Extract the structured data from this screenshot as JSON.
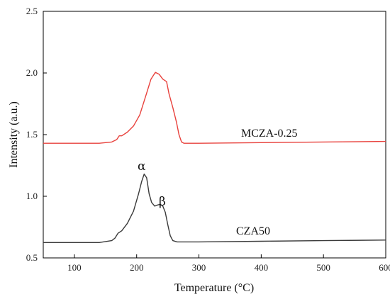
{
  "chart_data": {
    "type": "line",
    "xlabel": "Temperature (°C)",
    "ylabel": "Intensity (a.u.)",
    "xlim": [
      50,
      600
    ],
    "ylim": [
      0.5,
      2.5
    ],
    "x_ticks": [
      100,
      200,
      300,
      400,
      500,
      600
    ],
    "x_tick_labels": [
      "100",
      "200",
      "300",
      "400",
      "500",
      "600"
    ],
    "y_ticks": [
      0.5,
      1.0,
      1.5,
      2.0,
      2.5
    ],
    "y_tick_labels": [
      "0.5",
      "1.0",
      "1.5",
      "2.0",
      "2.5"
    ],
    "grid": false,
    "legend": "none",
    "series": [
      {
        "name": "MCZA-0.25",
        "color": "#e8413c",
        "points": [
          [
            50,
            1.43
          ],
          [
            100,
            1.43
          ],
          [
            140,
            1.43
          ],
          [
            160,
            1.44
          ],
          [
            168,
            1.46
          ],
          [
            172,
            1.49
          ],
          [
            176,
            1.49
          ],
          [
            185,
            1.52
          ],
          [
            195,
            1.57
          ],
          [
            205,
            1.66
          ],
          [
            215,
            1.82
          ],
          [
            223,
            1.95
          ],
          [
            230,
            2.005
          ],
          [
            236,
            1.99
          ],
          [
            242,
            1.95
          ],
          [
            248,
            1.93
          ],
          [
            252,
            1.83
          ],
          [
            258,
            1.72
          ],
          [
            264,
            1.6
          ],
          [
            268,
            1.5
          ],
          [
            272,
            1.44
          ],
          [
            276,
            1.43
          ],
          [
            300,
            1.43
          ],
          [
            400,
            1.435
          ],
          [
            500,
            1.44
          ],
          [
            600,
            1.445
          ]
        ]
      },
      {
        "name": "CZA50",
        "color": "#3a3a3a",
        "points": [
          [
            50,
            0.625
          ],
          [
            100,
            0.625
          ],
          [
            140,
            0.625
          ],
          [
            160,
            0.64
          ],
          [
            165,
            0.66
          ],
          [
            170,
            0.7
          ],
          [
            176,
            0.72
          ],
          [
            185,
            0.78
          ],
          [
            195,
            0.88
          ],
          [
            203,
            1.02
          ],
          [
            208,
            1.12
          ],
          [
            212,
            1.18
          ],
          [
            216,
            1.15
          ],
          [
            220,
            1.02
          ],
          [
            224,
            0.95
          ],
          [
            229,
            0.92
          ],
          [
            234,
            0.93
          ],
          [
            238,
            0.935
          ],
          [
            242,
            0.92
          ],
          [
            246,
            0.87
          ],
          [
            250,
            0.77
          ],
          [
            254,
            0.68
          ],
          [
            258,
            0.64
          ],
          [
            265,
            0.63
          ],
          [
            300,
            0.63
          ],
          [
            400,
            0.635
          ],
          [
            500,
            0.64
          ],
          [
            600,
            0.645
          ]
        ]
      }
    ],
    "annotations": [
      {
        "text": "α",
        "x": 210,
        "y": 1.23
      },
      {
        "text": "β",
        "x": 243,
        "y": 0.98
      }
    ]
  }
}
